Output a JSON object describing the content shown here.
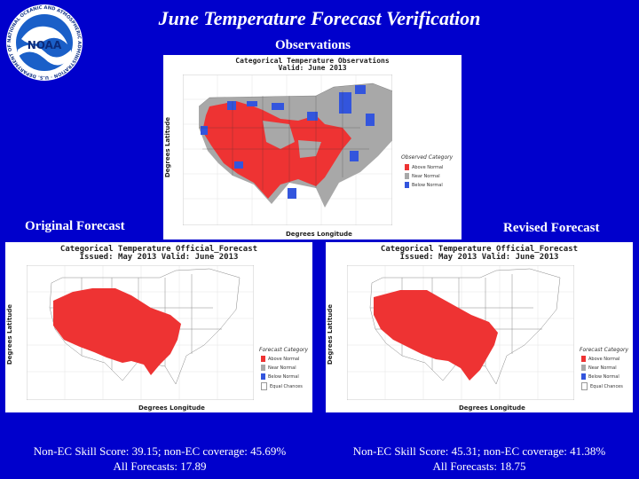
{
  "slide": {
    "title": "June Temperature Forecast Verification",
    "logo_text": "NOAA",
    "logo_ring_text": "NATIONAL OCEANIC AND ATMOSPHERIC ADMINISTRATION · U.S. DEPARTMENT OF COMMERCE"
  },
  "observations": {
    "label": "Observations",
    "map_title": "Categorical Temperature Observations",
    "map_subtitle": "Valid: June 2013",
    "legend_title": "Observed Category",
    "legend": [
      "Above Normal",
      "Near Normal",
      "Below Normal"
    ],
    "y_axis": "Degrees Latitude",
    "x_axis": "Degrees Longitude"
  },
  "original": {
    "label": "Original Forecast",
    "map_title": "Categorical Temperature Official_Forecast",
    "map_subtitle": "Issued: May 2013 Valid: June 2013",
    "legend_title": "Forecast Category",
    "legend": [
      "Above Normal",
      "Near Normal",
      "Below Normal",
      "Equal Chances"
    ],
    "y_axis": "Degrees Latitude",
    "x_axis": "Degrees Longitude",
    "score_line1": "Non-EC Skill Score: 39.15; non-EC coverage:  45.69%",
    "score_line2": "All Forecasts:  17.89"
  },
  "revised": {
    "label": "Revised Forecast",
    "map_title": "Categorical Temperature Official_Forecast",
    "map_subtitle": "Issued: May 2013 Valid: June 2013",
    "legend_title": "Forecast Category",
    "legend": [
      "Above Normal",
      "Near Normal",
      "Below Normal",
      "Equal Chances"
    ],
    "y_axis": "Degrees Latitude",
    "x_axis": "Degrees Longitude",
    "score_line1": "Non-EC Skill Score: 45.31; non-EC coverage: 41.38%",
    "score_line2": "All Forecasts:  18.75"
  },
  "colors": {
    "background": "#0000cc",
    "above": "#ee3333",
    "near": "#a8a8a8",
    "below": "#3355dd",
    "ec": "#ffffff"
  }
}
